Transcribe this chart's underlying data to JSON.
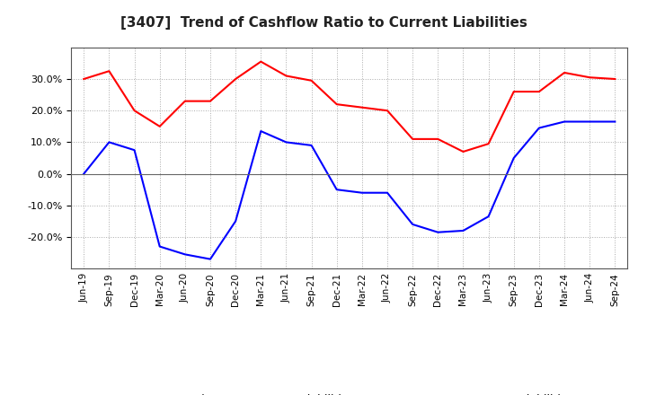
{
  "title": "[3407]  Trend of Cashflow Ratio to Current Liabilities",
  "x_labels": [
    "Jun-19",
    "Sep-19",
    "Dec-19",
    "Mar-20",
    "Jun-20",
    "Sep-20",
    "Dec-20",
    "Mar-21",
    "Jun-21",
    "Sep-21",
    "Dec-21",
    "Mar-22",
    "Jun-22",
    "Sep-22",
    "Dec-22",
    "Mar-23",
    "Jun-23",
    "Sep-23",
    "Dec-23",
    "Mar-24",
    "Jun-24",
    "Sep-24"
  ],
  "operating_cf": [
    30.0,
    32.5,
    20.0,
    15.0,
    23.0,
    23.0,
    30.0,
    35.5,
    31.0,
    29.5,
    22.0,
    21.0,
    20.0,
    11.0,
    11.0,
    7.0,
    9.5,
    26.0,
    26.0,
    32.0,
    30.5,
    30.0
  ],
  "free_cf": [
    0.0,
    10.0,
    7.5,
    -23.0,
    -25.5,
    -27.0,
    -15.0,
    13.5,
    10.0,
    9.0,
    -5.0,
    -6.0,
    -6.0,
    -16.0,
    -18.5,
    -18.0,
    -13.5,
    5.0,
    14.5,
    16.5,
    16.5,
    16.5
  ],
  "operating_color": "#ff0000",
  "free_color": "#0000ff",
  "ylim": [
    -30,
    40
  ],
  "yticks": [
    -20,
    -10,
    0,
    10,
    20,
    30
  ],
  "background_color": "#ffffff",
  "grid_color": "#aaaaaa",
  "title_fontsize": 11,
  "legend_labels": [
    "Operating CF to Current Liabilities",
    "Free CF to Current Liabilities"
  ]
}
